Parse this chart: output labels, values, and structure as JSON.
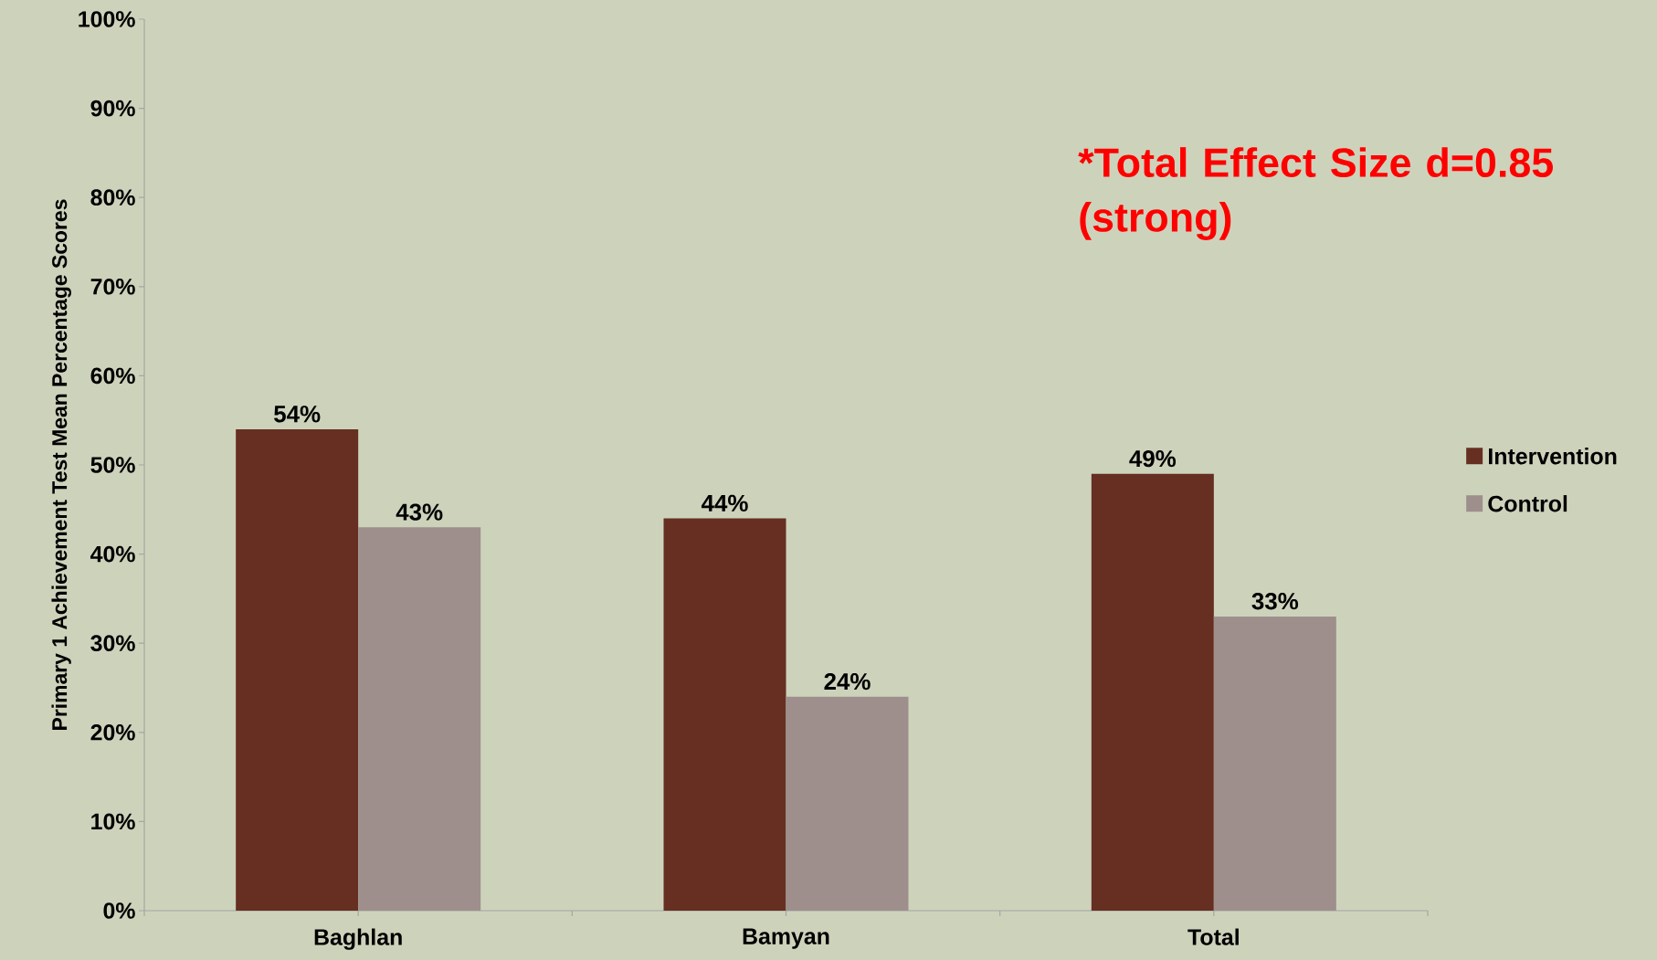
{
  "chart_data": {
    "type": "bar",
    "categories": [
      "Baghlan",
      "Bamyan",
      "Total"
    ],
    "ylabel": "Primary 1 Achievement Test Mean Percentage Scores",
    "series": [
      {
        "name": "Intervention",
        "color": "#662f22",
        "values": [
          54,
          44,
          49
        ],
        "value_labels": [
          "54%",
          "44%",
          "49%"
        ]
      },
      {
        "name": "Control",
        "color": "#9e8f8d",
        "values": [
          43,
          24,
          33
        ],
        "value_labels": [
          "43%",
          "24%",
          "33%"
        ]
      }
    ],
    "ylim": [
      0,
      100
    ],
    "yticks": [
      {
        "value": 0,
        "label": "0%"
      },
      {
        "value": 10,
        "label": "10%"
      },
      {
        "value": 20,
        "label": "20%"
      },
      {
        "value": 30,
        "label": "30%"
      },
      {
        "value": 40,
        "label": "40%"
      },
      {
        "value": 50,
        "label": "50%"
      },
      {
        "value": 60,
        "label": "60%"
      },
      {
        "value": 70,
        "label": "70%"
      },
      {
        "value": 80,
        "label": "80%"
      },
      {
        "value": 90,
        "label": "90%"
      },
      {
        "value": 100,
        "label": "100%"
      }
    ],
    "annotations": [
      "*Total Effect Size d=0.85 (strong)"
    ],
    "legend": "right",
    "grid": false
  }
}
